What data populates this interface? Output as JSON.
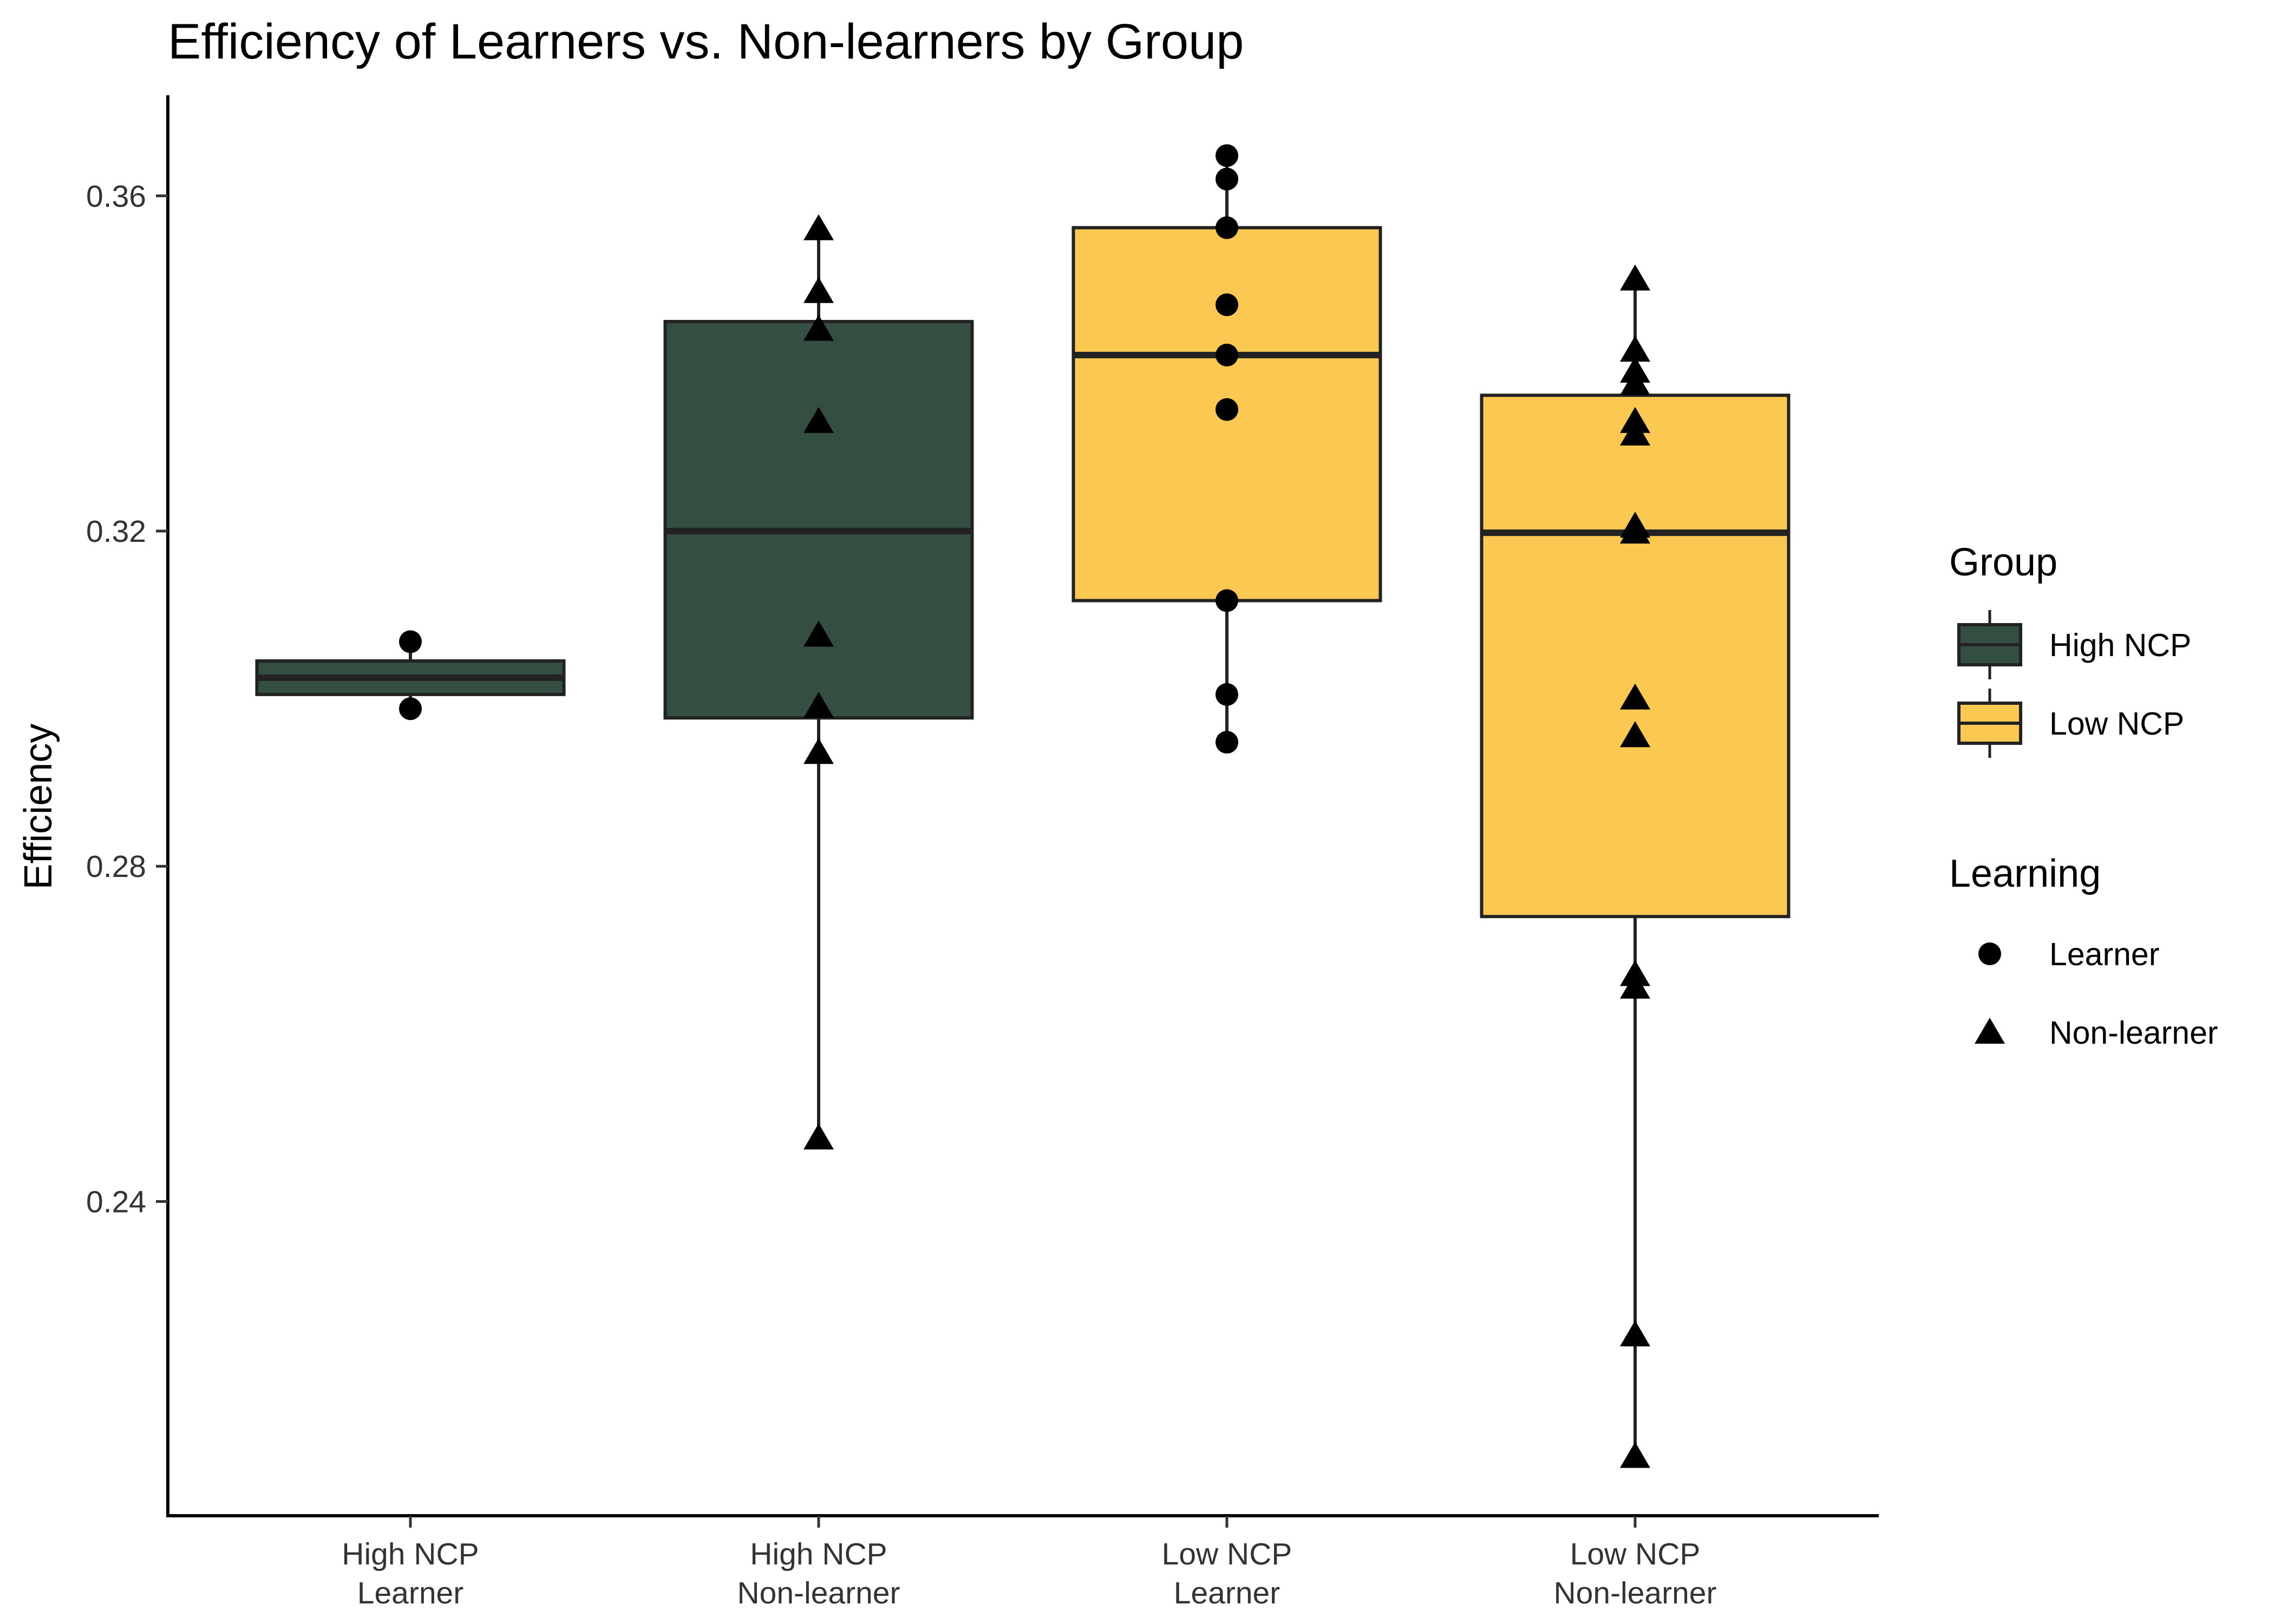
{
  "chart_data": {
    "type": "boxplot",
    "title": "Efficiency of Learners vs. Non-learners by Group",
    "xlabel": "",
    "ylabel": "Efficiency",
    "ylim": [
      0.2025,
      0.372
    ],
    "yticks": [
      0.24,
      0.28,
      0.32,
      0.36
    ],
    "ytick_labels": [
      "0.24",
      "0.28",
      "0.32",
      "0.36"
    ],
    "grid": false,
    "legend_position": "right",
    "colors": {
      "High NCP": "#344e41",
      "Low NCP": "#fbc951"
    },
    "categories": [
      {
        "label_line1": "High NCP",
        "label_line2": "Learner",
        "group": "High NCP",
        "learning": "Learner",
        "box": {
          "min": 0.2988,
          "q1": 0.3005,
          "median": 0.3025,
          "q3": 0.3045,
          "max": 0.3068
        },
        "points": [
          0.3068,
          0.2988
        ]
      },
      {
        "label_line1": "High NCP",
        "label_line2": "Non-learner",
        "group": "High NCP",
        "learning": "Non-learner",
        "box": {
          "min": 0.2475,
          "q1": 0.2977,
          "median": 0.32,
          "q3": 0.345,
          "max": 0.356
        },
        "points": [
          0.356,
          0.3485,
          0.344,
          0.333,
          0.3075,
          0.299,
          0.2935,
          0.2475
        ]
      },
      {
        "label_line1": "Low NCP",
        "label_line2": "Learner",
        "group": "Low NCP",
        "learning": "Learner",
        "box": {
          "min": 0.2948,
          "q1": 0.3117,
          "median": 0.341,
          "q3": 0.3562,
          "max": 0.3648
        },
        "points": [
          0.3648,
          0.362,
          0.3562,
          0.347,
          0.341,
          0.3345,
          0.3117,
          0.3005,
          0.2948
        ]
      },
      {
        "label_line1": "Low NCP",
        "label_line2": "Non-learner",
        "group": "Low NCP",
        "learning": "Non-learner",
        "box": {
          "min": 0.2095,
          "q1": 0.274,
          "median": 0.3198,
          "q3": 0.3362,
          "max": 0.35
        },
        "points": [
          0.35,
          0.3415,
          0.339,
          0.3375,
          0.333,
          0.3315,
          0.3205,
          0.3198,
          0.3,
          0.2955,
          0.267,
          0.2655,
          0.224,
          0.2095
        ]
      }
    ],
    "legend": {
      "group_title": "Group",
      "group_items": [
        "High NCP",
        "Low NCP"
      ],
      "learning_title": "Learning",
      "learning_items": [
        {
          "label": "Learner",
          "shape": "circle"
        },
        {
          "label": "Non-learner",
          "shape": "triangle"
        }
      ]
    }
  }
}
